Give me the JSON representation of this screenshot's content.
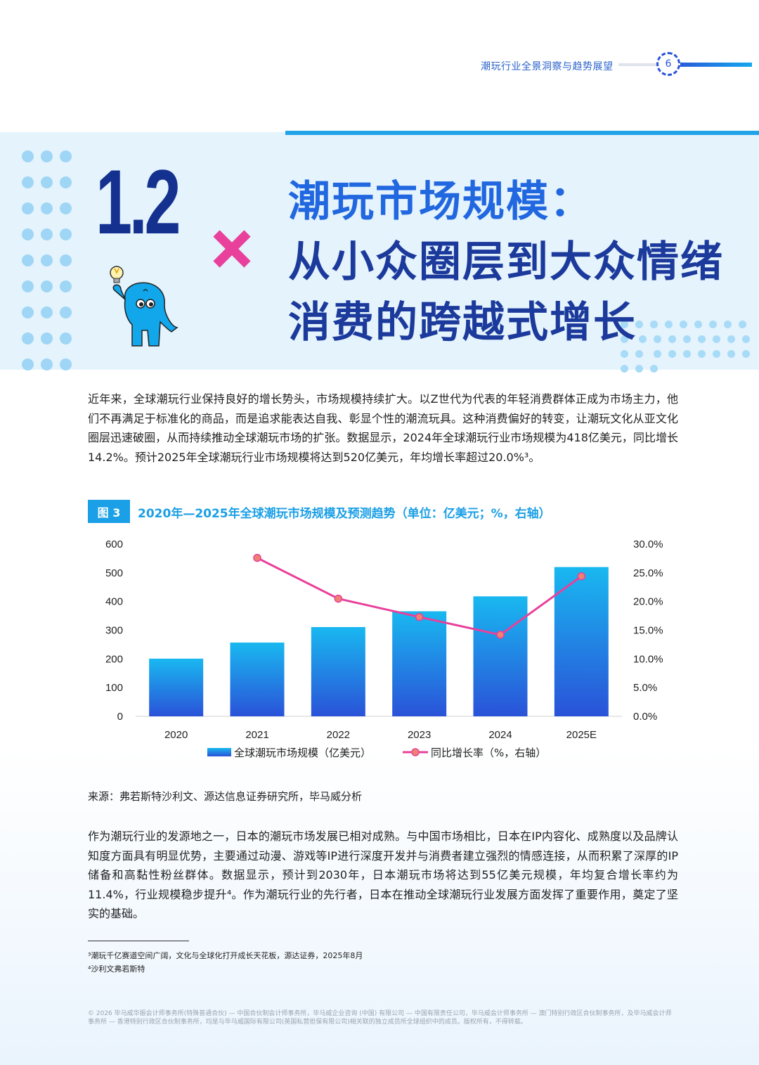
{
  "header": {
    "title": "潮玩行业全景洞察与趋势展望",
    "page_number": "6"
  },
  "hero": {
    "section_number": "1.2",
    "title_line1": "潮玩市场规模：",
    "title_line2": "从小众圈层到大众情绪",
    "title_line3": "消费的跨越式增长"
  },
  "body": {
    "paragraph1": "近年来，全球潮玩行业保持良好的增长势头，市场规模持续扩大。以Z世代为代表的年轻消费群体正成为市场主力，他们不再满足于标准化的商品，而是追求能表达自我、彰显个性的潮流玩具。这种消费偏好的转变，让潮玩文化从亚文化圈层迅速破圈，从而持续推动全球潮玩市场的扩张。数据显示，2024年全球潮玩行业市场规模为418亿美元，同比增长14.2%。预计2025年全球潮玩行业市场规模将达到520亿美元，年均增长率超过20.0%³。",
    "paragraph2": "作为潮玩行业的发源地之一，日本的潮玩市场发展已相对成熟。与中国市场相比，日本在IP内容化、成熟度以及品牌认知度方面具有明显优势，主要通过动漫、游戏等IP进行深度开发并与消费者建立强烈的情感连接，从而积累了深厚的IP储备和高黏性粉丝群体。数据显示，预计到2030年，日本潮玩市场将达到55亿美元规模，年均复合增长率约为11.4%，行业规模稳步提升⁴。作为潮玩行业的先行者，日本在推动全球潮玩行业发展方面发挥了重要作用，奠定了坚实的基础。"
  },
  "figure": {
    "label": "图 3",
    "title": "2020年—2025年全球潮玩市场规模及预测趋势（单位：亿美元；%，右轴）",
    "source": "来源：弗若斯特沙利文、源达信息证券研究所，毕马威分析"
  },
  "chart_data": {
    "type": "bar",
    "categories": [
      "2020",
      "2021",
      "2022",
      "2023",
      "2024",
      "2025E"
    ],
    "series": [
      {
        "name": "全球潮玩市场规模（亿美元）",
        "type": "bar",
        "axis": "left",
        "values": [
          201,
          257,
          311,
          366,
          418,
          520
        ]
      },
      {
        "name": "同比增长率（%，右轴）",
        "type": "line",
        "axis": "right",
        "values": [
          null,
          27.6,
          20.5,
          17.3,
          14.2,
          24.4
        ]
      }
    ],
    "y_left": {
      "range": [
        0,
        600
      ],
      "ticks": [
        "0",
        "100",
        "200",
        "300",
        "400",
        "500",
        "600"
      ]
    },
    "y_right": {
      "range": [
        0,
        30
      ],
      "ticks": [
        "0.0%",
        "5.0%",
        "10.0%",
        "15.0%",
        "20.0%",
        "25.0%",
        "30.0%"
      ]
    },
    "grid": false,
    "legend_position": "bottom",
    "colors": {
      "bar_top": "#19b8f0",
      "bar_bottom": "#2a52d8",
      "line": "#e8409b",
      "marker": "#f08070"
    }
  },
  "footnotes": [
    "³潮玩千亿赛道空间广阔，文化与全球化打开成长天花板，源达证券，2025年8月",
    "⁴沙利文弗若斯特"
  ],
  "legal": "© 2026 毕马威华振会计师事务所(特殊普通合伙) — 中国合伙制会计师事务所，毕马威企业咨询 (中国) 有限公司 — 中国有限责任公司，毕马威会计师事务所 — 澳门特别行政区合伙制事务所，及毕马威会计师事务所 — 香港特别行政区合伙制事务所，均是与毕马威国际有限公司(英国私营担保有限公司)相关联的独立成员所全球组织中的成员。版权所有，不得转载。",
  "colors": {
    "primary_blue": "#1b9fe6",
    "navy": "#14318f",
    "accent_pink": "#e8409b",
    "hero_bg": "#e4f3fc"
  }
}
